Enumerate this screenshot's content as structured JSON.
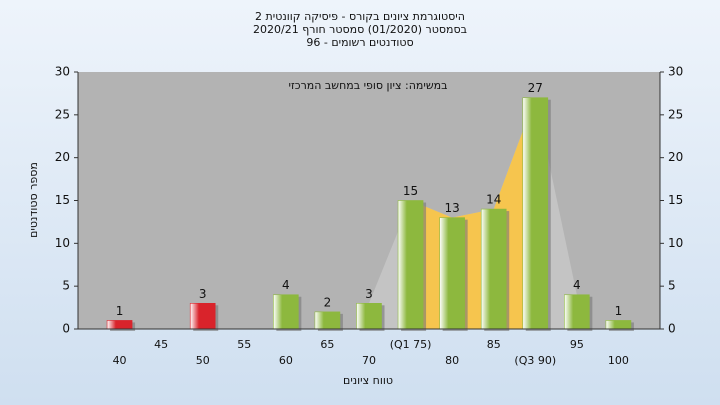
{
  "chart_data": {
    "type": "bar",
    "title": [
      "היסטוגרמת ציונים בקורס - פיסיקה קוונטית 2",
      "בסמסטר  (01/2020)  סמסטר חורף 2020/21",
      "סטודנטים רשומים - 96"
    ],
    "annotation": "במשימה: ציון סופי במחשב המרכזי",
    "x_label": "טווח ציונים",
    "y_label": "מספר סטודנטים",
    "categories": [
      "40",
      "45",
      "50",
      "55",
      "60",
      "65",
      "70",
      "(Q1 75)",
      "80",
      "85",
      "(Q3 90)",
      "95",
      "100"
    ],
    "values": [
      1,
      null,
      3,
      null,
      4,
      2,
      3,
      15,
      13,
      14,
      27,
      4,
      1
    ],
    "colors": [
      "#d9232b",
      "#d9232b",
      "#d9232b",
      "#d9232b",
      "#8db83e",
      "#8db83e",
      "#8db83e",
      "#8db83e",
      "#8db83e",
      "#8db83e",
      "#8db83e",
      "#8db83e",
      "#8db83e"
    ],
    "ylim": [
      0,
      30
    ],
    "yticks": [
      0,
      5,
      10,
      15,
      20,
      25,
      30
    ],
    "y2lim": [
      0,
      30
    ],
    "y2ticks": [
      0,
      5,
      10,
      15,
      20,
      25,
      30
    ],
    "grid": true
  }
}
